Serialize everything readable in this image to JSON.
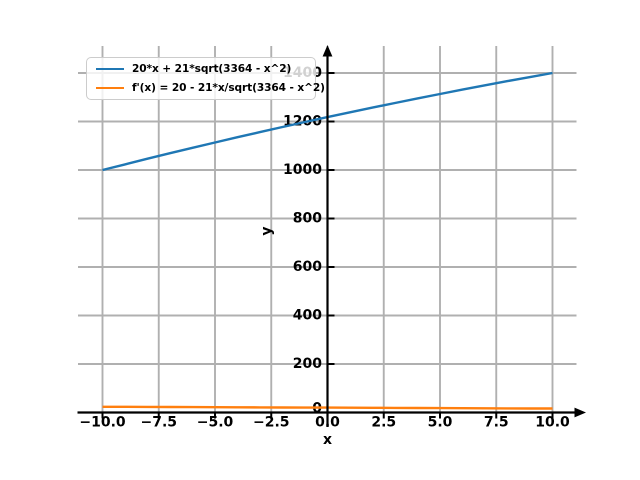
{
  "figure": {
    "background": "#ffffff",
    "axis_color": "#000000",
    "grid_color": "#b0b0b0",
    "xlabel": "x",
    "ylabel": "y",
    "origin_y_label": "0"
  },
  "legend": {
    "position": "upper left",
    "entries": [
      {
        "label": "20*x + 21*sqrt(3364 - x^2)",
        "color": "#1f77b4"
      },
      {
        "label": "f'(x) = 20 - 21*x/sqrt(3364 - x^2)",
        "color": "#ff7f0e"
      }
    ]
  },
  "chart_data": {
    "type": "line",
    "title": "",
    "xlabel": "x",
    "ylabel": "y",
    "grid": true,
    "legend_position": "upper left",
    "xlim": [
      -11,
      11
    ],
    "ylim": [
      -5,
      1510
    ],
    "xtick_values": [
      -10,
      -7.5,
      -5,
      -2.5,
      0,
      2.5,
      5,
      7.5,
      10
    ],
    "xtick_labels": [
      "−10.0",
      "−7.5",
      "−5.0",
      "−2.5",
      "0.0",
      "2.5",
      "5.0",
      "7.5",
      "10.0"
    ],
    "ytick_values": [
      200,
      400,
      600,
      800,
      1000,
      1200,
      1400
    ],
    "ytick_labels": [
      "200",
      "400",
      "600",
      "800",
      "1000",
      "1200",
      "1400"
    ],
    "series": [
      {
        "name": "20*x + 21*sqrt(3364 - x^2)",
        "color": "#1f77b4",
        "x": [
          -10,
          -9,
          -8,
          -7,
          -6,
          -5,
          -4,
          -3,
          -2,
          -1,
          0,
          1,
          2,
          3,
          4,
          5,
          6,
          7,
          8,
          9,
          10
        ],
        "y": [
          999.8,
          1023.2,
          1046.4,
          1069.1,
          1091.5,
          1113.5,
          1135.1,
          1156.4,
          1177.3,
          1197.8,
          1218.0,
          1237.8,
          1257.3,
          1276.4,
          1295.1,
          1313.5,
          1331.5,
          1349.1,
          1366.4,
          1383.2,
          1399.8
        ]
      },
      {
        "name": "f'(x) = 20 - 21*x/sqrt(3364 - x^2)",
        "color": "#ff7f0e",
        "x": [
          -10,
          -9,
          -8,
          -7,
          -6,
          -5,
          -4,
          -3,
          -2,
          -1,
          0,
          1,
          2,
          3,
          4,
          5,
          6,
          7,
          8,
          9,
          10
        ],
        "y": [
          23.7,
          23.3,
          22.9,
          22.6,
          22.2,
          21.8,
          21.5,
          21.1,
          20.7,
          20.4,
          20.0,
          19.6,
          19.3,
          18.9,
          18.5,
          18.2,
          17.8,
          17.5,
          17.1,
          16.7,
          16.3
        ]
      }
    ]
  }
}
